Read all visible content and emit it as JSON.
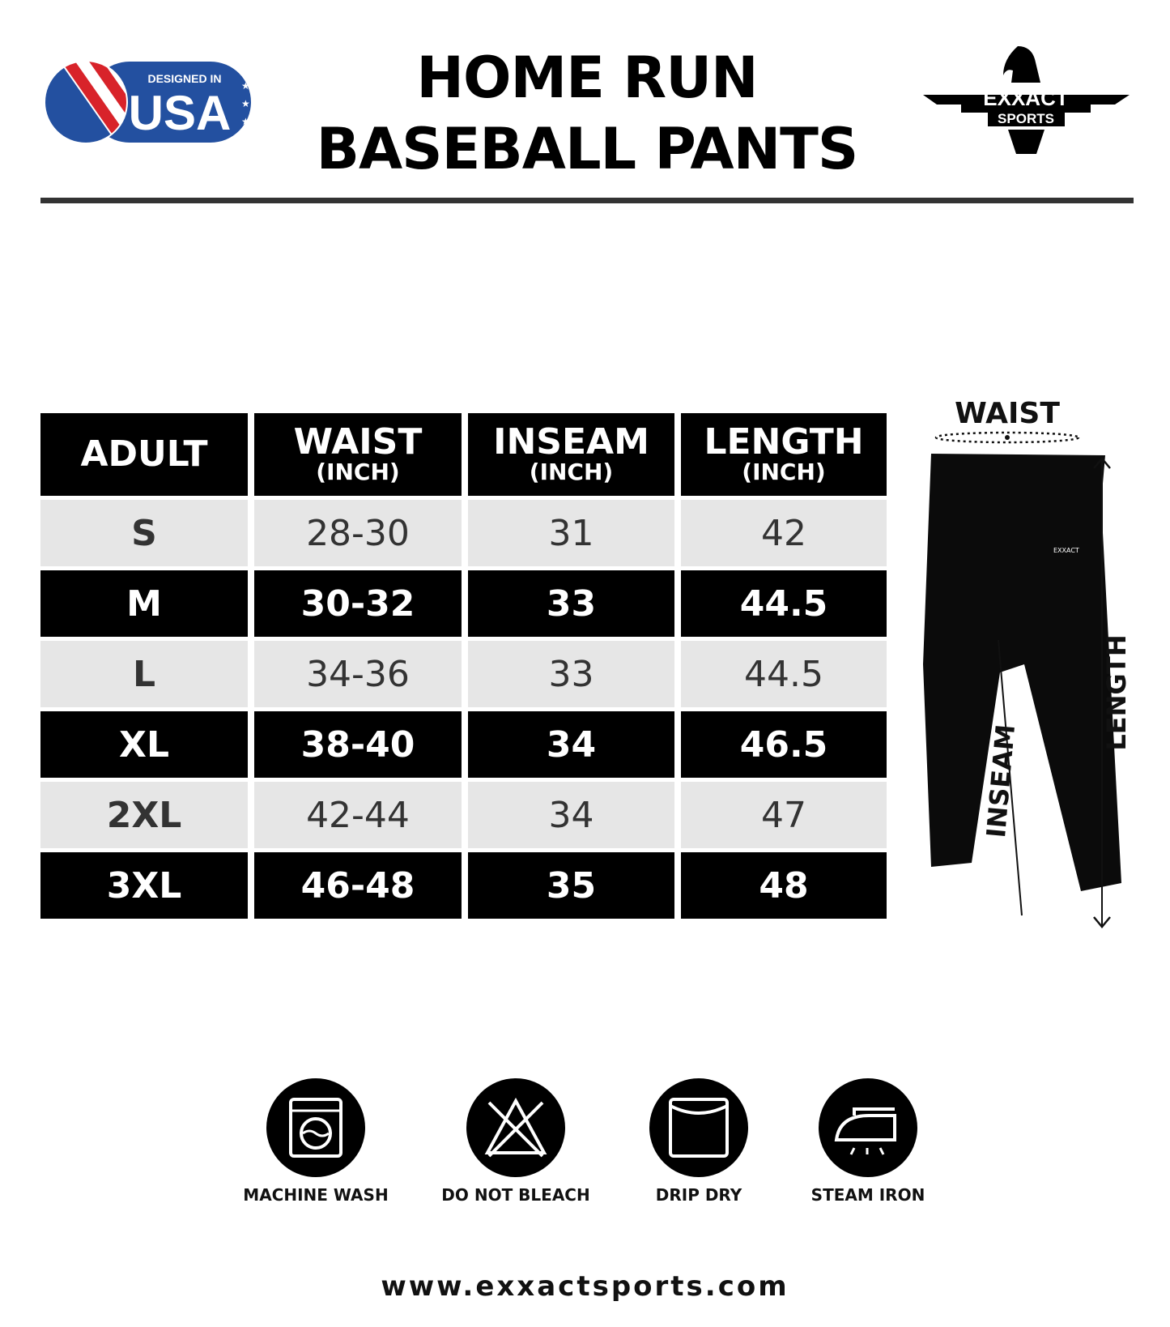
{
  "header": {
    "title_line1": "HOME RUN",
    "title_line2": "BASEBALL PANTS",
    "badge_small": "DESIGNED IN",
    "badge_big": "USA",
    "brand_name": "EXXACT",
    "brand_sub": "SPORTS"
  },
  "table": {
    "headers": [
      {
        "label": "ADULT",
        "unit": ""
      },
      {
        "label": "WAIST",
        "unit": "(INCH)"
      },
      {
        "label": "INSEAM",
        "unit": "(INCH)"
      },
      {
        "label": "LENGTH",
        "unit": "(INCH)"
      }
    ],
    "rows": [
      [
        "S",
        "28-30",
        "31",
        "42"
      ],
      [
        "M",
        "30-32",
        "33",
        "44.5"
      ],
      [
        "L",
        "34-36",
        "33",
        "44.5"
      ],
      [
        "XL",
        "38-40",
        "34",
        "46.5"
      ],
      [
        "2XL",
        "42-44",
        "34",
        "47"
      ],
      [
        "3XL",
        "46-48",
        "35",
        "48"
      ]
    ]
  },
  "diagram": {
    "waist": "WAIST",
    "inseam": "INSEAM",
    "length": "LENGTH"
  },
  "care": [
    {
      "icon": "machine-wash-icon",
      "label": "MACHINE WASH"
    },
    {
      "icon": "do-not-bleach-icon",
      "label": "DO NOT BLEACH"
    },
    {
      "icon": "drip-dry-icon",
      "label": "DRIP DRY"
    },
    {
      "icon": "steam-iron-icon",
      "label": "STEAM IRON"
    }
  ],
  "footer": {
    "url": "www.exxactsports.com"
  },
  "colors": {
    "dark_row": "#000000",
    "light_row": "#e6e6e6",
    "flag_blue": "#2350a0",
    "flag_red": "#d8232a"
  }
}
